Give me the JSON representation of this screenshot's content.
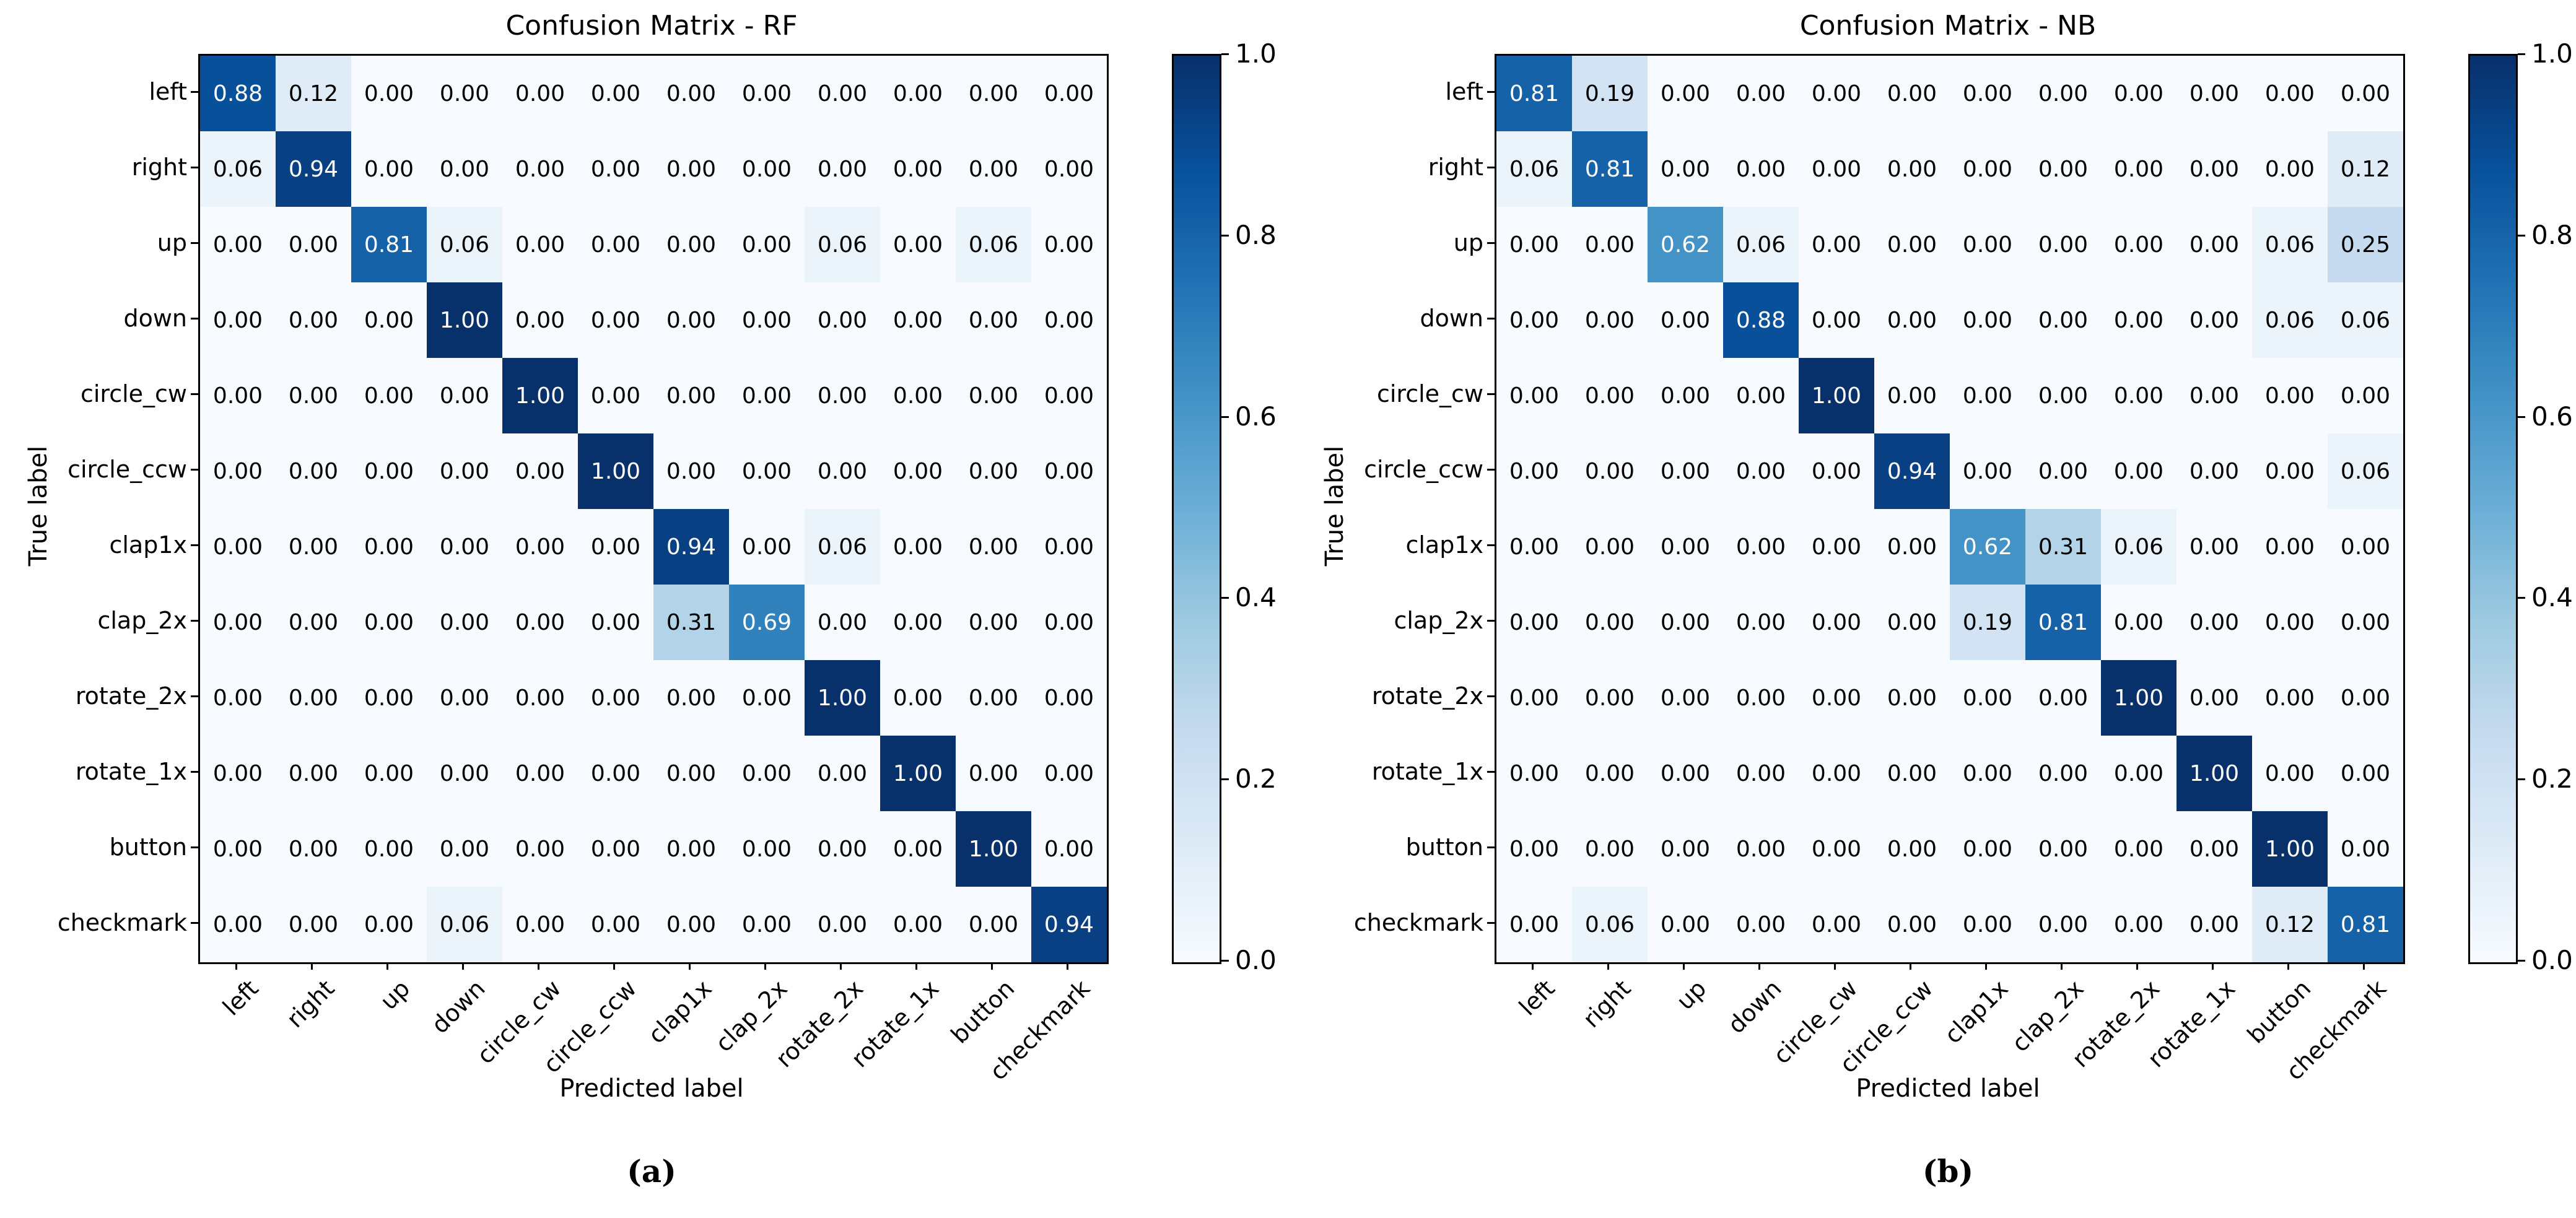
{
  "page": {
    "background": "#ffffff"
  },
  "colors": {
    "spine": "#000000",
    "cell_text_dark": "#000000",
    "cell_text_light": "#ffffff",
    "cmap_low": "#f7fbff",
    "cmap_high": "#08306b",
    "blues_stops": [
      [
        0.0,
        "#f7fbff"
      ],
      [
        0.125,
        "#deebf7"
      ],
      [
        0.25,
        "#c6dbef"
      ],
      [
        0.375,
        "#9ecae1"
      ],
      [
        0.5,
        "#6baed6"
      ],
      [
        0.625,
        "#4292c6"
      ],
      [
        0.75,
        "#2171b5"
      ],
      [
        0.875,
        "#08519c"
      ],
      [
        1.0,
        "#08306b"
      ]
    ]
  },
  "chart_data": [
    {
      "type": "heatmap",
      "title": "Confusion Matrix - RF",
      "xlabel": "Predicted label",
      "ylabel": "True label",
      "caption": "(a)",
      "categories": [
        "left",
        "right",
        "up",
        "down",
        "circle_cw",
        "circle_ccw",
        "clap1x",
        "clap_2x",
        "rotate_2x",
        "rotate_1x",
        "button",
        "checkmark"
      ],
      "matrix": [
        [
          0.88,
          0.12,
          0.0,
          0.0,
          0.0,
          0.0,
          0.0,
          0.0,
          0.0,
          0.0,
          0.0,
          0.0
        ],
        [
          0.06,
          0.94,
          0.0,
          0.0,
          0.0,
          0.0,
          0.0,
          0.0,
          0.0,
          0.0,
          0.0,
          0.0
        ],
        [
          0.0,
          0.0,
          0.81,
          0.06,
          0.0,
          0.0,
          0.0,
          0.0,
          0.06,
          0.0,
          0.06,
          0.0
        ],
        [
          0.0,
          0.0,
          0.0,
          1.0,
          0.0,
          0.0,
          0.0,
          0.0,
          0.0,
          0.0,
          0.0,
          0.0
        ],
        [
          0.0,
          0.0,
          0.0,
          0.0,
          1.0,
          0.0,
          0.0,
          0.0,
          0.0,
          0.0,
          0.0,
          0.0
        ],
        [
          0.0,
          0.0,
          0.0,
          0.0,
          0.0,
          1.0,
          0.0,
          0.0,
          0.0,
          0.0,
          0.0,
          0.0
        ],
        [
          0.0,
          0.0,
          0.0,
          0.0,
          0.0,
          0.0,
          0.94,
          0.0,
          0.06,
          0.0,
          0.0,
          0.0
        ],
        [
          0.0,
          0.0,
          0.0,
          0.0,
          0.0,
          0.0,
          0.31,
          0.69,
          0.0,
          0.0,
          0.0,
          0.0
        ],
        [
          0.0,
          0.0,
          0.0,
          0.0,
          0.0,
          0.0,
          0.0,
          0.0,
          1.0,
          0.0,
          0.0,
          0.0
        ],
        [
          0.0,
          0.0,
          0.0,
          0.0,
          0.0,
          0.0,
          0.0,
          0.0,
          0.0,
          1.0,
          0.0,
          0.0
        ],
        [
          0.0,
          0.0,
          0.0,
          0.0,
          0.0,
          0.0,
          0.0,
          0.0,
          0.0,
          0.0,
          1.0,
          0.0
        ],
        [
          0.0,
          0.0,
          0.0,
          0.06,
          0.0,
          0.0,
          0.0,
          0.0,
          0.0,
          0.0,
          0.0,
          0.94
        ]
      ],
      "value_range": [
        0,
        1
      ],
      "colorbar_ticks": [
        "0.0",
        "0.2",
        "0.4",
        "0.6",
        "0.8",
        "1.0"
      ],
      "colormap": "Blues",
      "grid": false,
      "legend_position": "colorbar-right"
    },
    {
      "type": "heatmap",
      "title": "Confusion Matrix - NB",
      "xlabel": "Predicted label",
      "ylabel": "True label",
      "caption": "(b)",
      "categories": [
        "left",
        "right",
        "up",
        "down",
        "circle_cw",
        "circle_ccw",
        "clap1x",
        "clap_2x",
        "rotate_2x",
        "rotate_1x",
        "button",
        "checkmark"
      ],
      "matrix": [
        [
          0.81,
          0.19,
          0.0,
          0.0,
          0.0,
          0.0,
          0.0,
          0.0,
          0.0,
          0.0,
          0.0,
          0.0
        ],
        [
          0.06,
          0.81,
          0.0,
          0.0,
          0.0,
          0.0,
          0.0,
          0.0,
          0.0,
          0.0,
          0.0,
          0.12
        ],
        [
          0.0,
          0.0,
          0.62,
          0.06,
          0.0,
          0.0,
          0.0,
          0.0,
          0.0,
          0.0,
          0.06,
          0.25
        ],
        [
          0.0,
          0.0,
          0.0,
          0.88,
          0.0,
          0.0,
          0.0,
          0.0,
          0.0,
          0.0,
          0.06,
          0.06
        ],
        [
          0.0,
          0.0,
          0.0,
          0.0,
          1.0,
          0.0,
          0.0,
          0.0,
          0.0,
          0.0,
          0.0,
          0.0
        ],
        [
          0.0,
          0.0,
          0.0,
          0.0,
          0.0,
          0.94,
          0.0,
          0.0,
          0.0,
          0.0,
          0.0,
          0.06
        ],
        [
          0.0,
          0.0,
          0.0,
          0.0,
          0.0,
          0.0,
          0.62,
          0.31,
          0.06,
          0.0,
          0.0,
          0.0
        ],
        [
          0.0,
          0.0,
          0.0,
          0.0,
          0.0,
          0.0,
          0.19,
          0.81,
          0.0,
          0.0,
          0.0,
          0.0
        ],
        [
          0.0,
          0.0,
          0.0,
          0.0,
          0.0,
          0.0,
          0.0,
          0.0,
          1.0,
          0.0,
          0.0,
          0.0
        ],
        [
          0.0,
          0.0,
          0.0,
          0.0,
          0.0,
          0.0,
          0.0,
          0.0,
          0.0,
          1.0,
          0.0,
          0.0
        ],
        [
          0.0,
          0.0,
          0.0,
          0.0,
          0.0,
          0.0,
          0.0,
          0.0,
          0.0,
          0.0,
          1.0,
          0.0
        ],
        [
          0.0,
          0.06,
          0.0,
          0.0,
          0.0,
          0.0,
          0.0,
          0.0,
          0.0,
          0.0,
          0.12,
          0.81
        ]
      ],
      "value_range": [
        0,
        1
      ],
      "colorbar_ticks": [
        "0.0",
        "0.2",
        "0.4",
        "0.6",
        "0.8",
        "1.0"
      ],
      "colormap": "Blues",
      "grid": false,
      "legend_position": "colorbar-right"
    }
  ]
}
